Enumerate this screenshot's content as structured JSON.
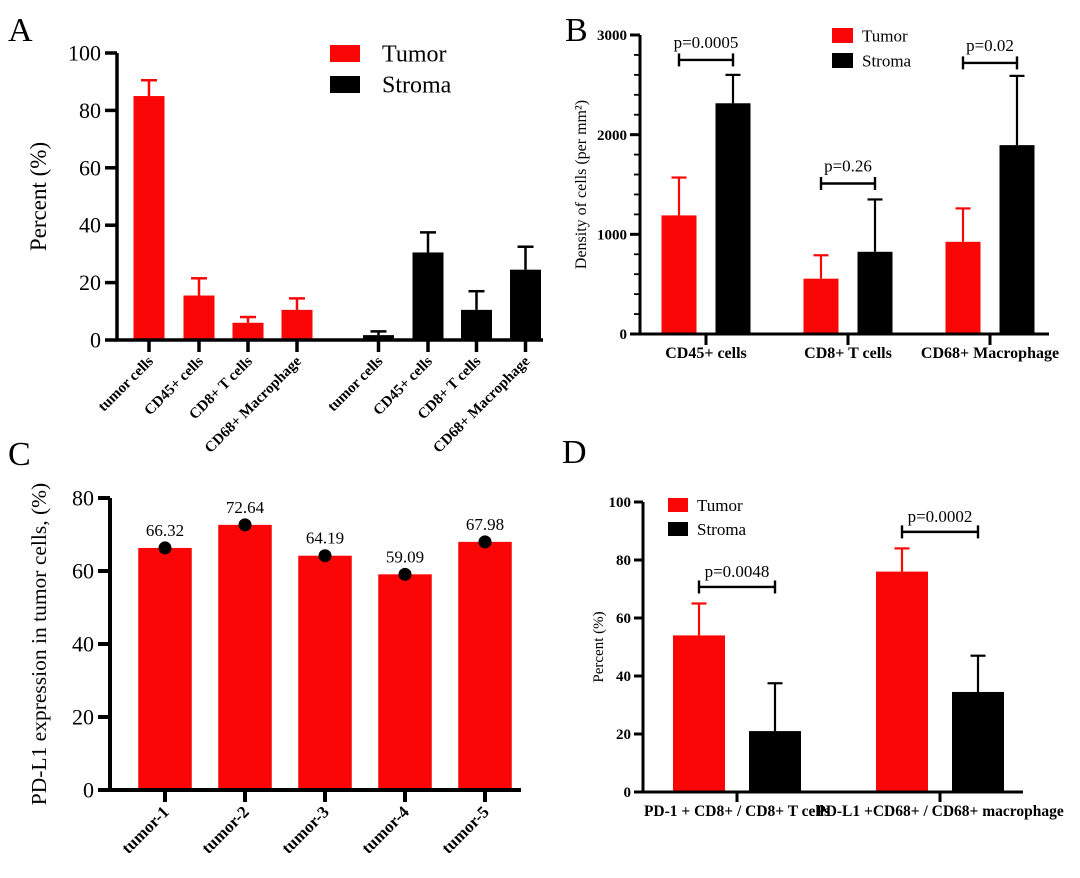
{
  "figure": {
    "background": "#ffffff",
    "series_colors": {
      "Tumor": "#fa0606",
      "Stroma": "#000000"
    },
    "axis_color": "#000000"
  },
  "chart_data": [
    {
      "panel": "A",
      "type": "bar",
      "ylabel": "Percent (%)",
      "ylim": [
        0,
        100
      ],
      "ytick_step": 20,
      "legend": {
        "position": "top-right",
        "entries": [
          {
            "label": "Tumor",
            "color": "#fa0606"
          },
          {
            "label": "Stroma",
            "color": "#000000"
          }
        ]
      },
      "bars": [
        {
          "category": "tumor cells",
          "series": "Tumor",
          "value": 85,
          "err_top": 90.5
        },
        {
          "category": "CD45+ cells",
          "series": "Tumor",
          "value": 15.5,
          "err_top": 21.5
        },
        {
          "category": "CD8+ T cells",
          "series": "Tumor",
          "value": 6,
          "err_top": 8
        },
        {
          "category": "CD68+ Macrophage",
          "series": "Tumor",
          "value": 10.5,
          "err_top": 14.5
        },
        {
          "category": "tumor cells",
          "series": "Stroma",
          "value": 1.7,
          "err_top": 3
        },
        {
          "category": "CD45+ cells",
          "series": "Stroma",
          "value": 30.5,
          "err_top": 37.5
        },
        {
          "category": "CD8+ T cells",
          "series": "Stroma",
          "value": 10.5,
          "err_top": 17
        },
        {
          "category": "CD68+ Macrophage",
          "series": "Stroma",
          "value": 24.5,
          "err_top": 32.5
        }
      ]
    },
    {
      "panel": "B",
      "type": "grouped-bar",
      "ylabel": "Density of cells (per mm²)",
      "ylim": [
        0,
        3000
      ],
      "ytick_step": 1000,
      "minor_tick_step": 200,
      "legend": {
        "position": "top-center",
        "entries": [
          {
            "label": "Tumor",
            "color": "#fa0606"
          },
          {
            "label": "Stroma",
            "color": "#000000"
          }
        ]
      },
      "categories": [
        "CD45+ cells",
        "CD8+ T cells",
        "CD68+ Macrophage"
      ],
      "series": [
        {
          "name": "Tumor",
          "color": "#fa0606",
          "values": [
            1190,
            555,
            925
          ],
          "err_top": [
            1570,
            790,
            1260
          ]
        },
        {
          "name": "Stroma",
          "color": "#000000",
          "values": [
            2315,
            825,
            1895
          ],
          "err_top": [
            2600,
            1350,
            2590
          ]
        }
      ],
      "significance": [
        {
          "category": "CD45+ cells",
          "label": "p=0.0005",
          "bar_y": 2750
        },
        {
          "category": "CD8+ T cells",
          "label": "p=0.26",
          "bar_y": 1510
        },
        {
          "category": "CD68+ Macrophage",
          "label": "p=0.02",
          "bar_y": 2720
        }
      ]
    },
    {
      "panel": "C",
      "type": "bar",
      "ylabel": "PD-L1 expression in tumor cells, (%)",
      "ylim": [
        0,
        80
      ],
      "ytick_step": 20,
      "bar_color": "#fa0606",
      "marker": "black-dot",
      "categories": [
        "tumor-1",
        "tumor-2",
        "tumor-3",
        "tumor-4",
        "tumor-5"
      ],
      "values": [
        66.32,
        72.64,
        64.19,
        59.09,
        67.98
      ],
      "value_labels": [
        "66.32",
        "72.64",
        "64.19",
        "59.09",
        "67.98"
      ]
    },
    {
      "panel": "D",
      "type": "grouped-bar",
      "ylabel": "Percent (%)",
      "ylim": [
        0,
        100
      ],
      "ytick_step": 20,
      "legend": {
        "position": "top-left",
        "entries": [
          {
            "label": "Tumor",
            "color": "#fa0606"
          },
          {
            "label": "Stroma",
            "color": "#000000"
          }
        ]
      },
      "categories": [
        "PD-1 + CD8+ / CD8+ T cells",
        "PD-L1 +CD68+  / CD68+ macrophage"
      ],
      "series": [
        {
          "name": "Tumor",
          "color": "#fa0606",
          "values": [
            54,
            76
          ],
          "err_top": [
            65,
            84
          ]
        },
        {
          "name": "Stroma",
          "color": "#000000",
          "values": [
            21,
            34.5
          ],
          "err_top": [
            37.5,
            47
          ]
        }
      ],
      "significance": [
        {
          "category": "PD-1 + CD8+ / CD8+ T cells",
          "label": "p=0.0048",
          "bar_y": 70.7
        },
        {
          "category": "PD-L1 +CD68+  / CD68+ macrophage",
          "label": "p=0.0002",
          "bar_y": 89.7
        }
      ]
    }
  ]
}
